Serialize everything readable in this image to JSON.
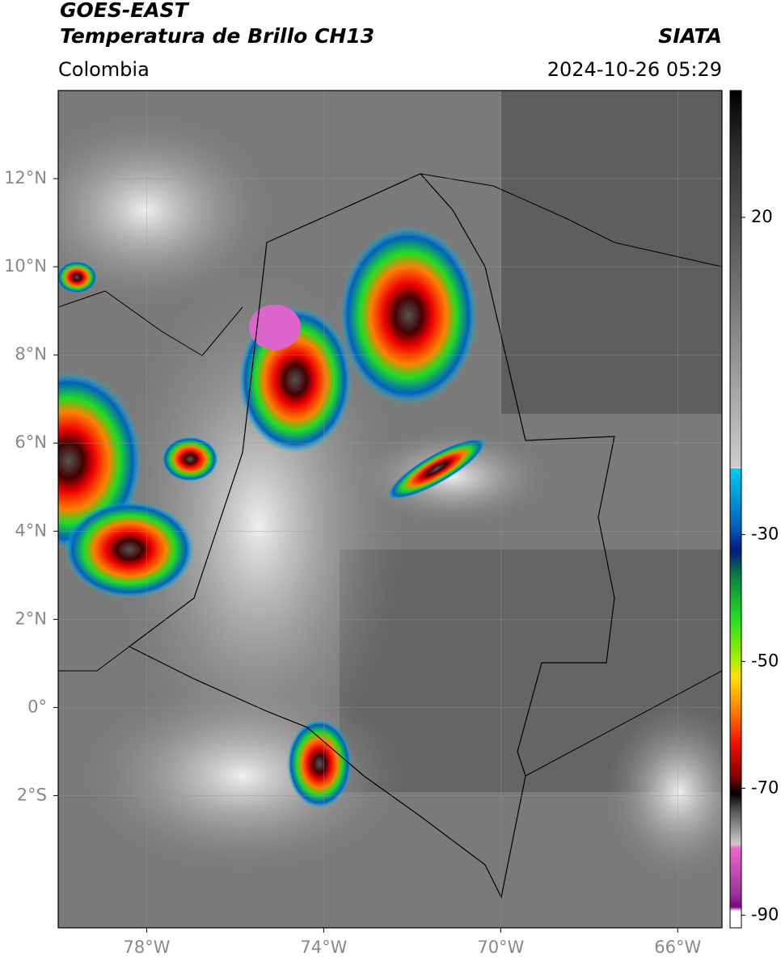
{
  "header": {
    "title": "GOES-EAST",
    "subtitle": "Temperatura de Brillo CH13",
    "source": "SIATA",
    "region": "Colombia",
    "timestamp": "2024-10-26 05:29"
  },
  "map": {
    "lon_lim": [
      -80,
      -65
    ],
    "lat_lim": [
      -5,
      14
    ],
    "lat_ticks": [
      {
        "value": 12,
        "label": "12°N"
      },
      {
        "value": 10,
        "label": "10°N"
      },
      {
        "value": 8,
        "label": "8°N"
      },
      {
        "value": 6,
        "label": "6°N"
      },
      {
        "value": 4,
        "label": "4°N"
      },
      {
        "value": 2,
        "label": "2°N"
      },
      {
        "value": 0,
        "label": "0°"
      },
      {
        "value": -2,
        "label": "2°S"
      }
    ],
    "lon_ticks": [
      {
        "value": -78,
        "label": "78°W"
      },
      {
        "value": -74,
        "label": "74°W"
      },
      {
        "value": -70,
        "label": "70°W"
      },
      {
        "value": -66,
        "label": "66°W"
      }
    ]
  },
  "colorbar": {
    "lim": [
      -92,
      40
    ],
    "ticks": [
      20,
      -30,
      -50,
      -70,
      -90
    ]
  }
}
